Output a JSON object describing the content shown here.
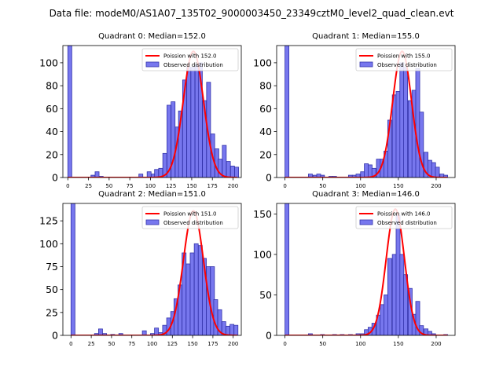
{
  "figure": {
    "suptitle": "Data file: modeM0/AS1A07_135T02_9000003450_23349cztM0_level2_quad_clean.evt"
  },
  "colors": {
    "bar_fill": "#7777ee",
    "bar_edge": "#3333aa",
    "curve": "#ff0000"
  },
  "chart_data": [
    {
      "type": "bar",
      "title": "Quadrant 0: Median=152.0",
      "legend": [
        "Poission with 152.0",
        "Observed distribution"
      ],
      "legend_position": "top-right",
      "xlim": [
        -6,
        210
      ],
      "ylim": [
        0,
        115
      ],
      "xticks": [
        0,
        25,
        50,
        75,
        100,
        125,
        150,
        175,
        200
      ],
      "yticks": [
        0,
        20,
        40,
        60,
        80,
        100
      ],
      "bin_width": 4.8,
      "bins": [
        [
          0,
          115
        ],
        [
          28,
          2
        ],
        [
          33,
          5
        ],
        [
          38,
          1
        ],
        [
          86,
          3
        ],
        [
          96,
          5
        ],
        [
          101,
          3
        ],
        [
          105,
          7
        ],
        [
          110,
          8
        ],
        [
          115,
          21
        ],
        [
          120,
          63
        ],
        [
          125,
          66
        ],
        [
          130,
          44
        ],
        [
          134,
          58
        ],
        [
          139,
          85
        ],
        [
          144,
          96
        ],
        [
          149,
          96
        ],
        [
          154,
          98
        ],
        [
          158,
          100
        ],
        [
          163,
          67
        ],
        [
          168,
          83
        ],
        [
          173,
          38
        ],
        [
          178,
          25
        ],
        [
          182,
          16
        ],
        [
          187,
          28
        ],
        [
          192,
          14
        ],
        [
          197,
          10
        ],
        [
          202,
          9
        ]
      ],
      "curve": {
        "mean": 152.0,
        "sigma": 12.3,
        "peak": 110,
        "x_start": 0,
        "x_end": 205
      }
    },
    {
      "type": "bar",
      "title": "Quadrant 1: Median=155.0",
      "legend": [
        "Poission with 155.0",
        "Observed distribution"
      ],
      "legend_position": "top-right",
      "xlim": [
        -11,
        225
      ],
      "ylim": [
        0,
        115
      ],
      "xticks": [
        0,
        50,
        100,
        150,
        200
      ],
      "yticks": [
        0,
        20,
        40,
        60,
        80,
        100
      ],
      "bin_width": 5.25,
      "bins": [
        [
          0,
          115
        ],
        [
          31,
          3
        ],
        [
          37,
          2
        ],
        [
          42,
          3
        ],
        [
          47,
          2
        ],
        [
          58,
          1
        ],
        [
          63,
          1
        ],
        [
          84,
          2
        ],
        [
          89,
          2
        ],
        [
          94,
          3
        ],
        [
          100,
          5
        ],
        [
          105,
          12
        ],
        [
          110,
          11
        ],
        [
          115,
          8
        ],
        [
          121,
          16
        ],
        [
          126,
          16
        ],
        [
          131,
          23
        ],
        [
          136,
          50
        ],
        [
          142,
          72
        ],
        [
          147,
          75
        ],
        [
          152,
          100
        ],
        [
          157,
          96
        ],
        [
          163,
          67
        ],
        [
          168,
          76
        ],
        [
          173,
          95
        ],
        [
          178,
          57
        ],
        [
          184,
          22
        ],
        [
          189,
          15
        ],
        [
          194,
          13
        ],
        [
          199,
          9
        ],
        [
          205,
          3
        ],
        [
          210,
          2
        ]
      ],
      "curve": {
        "mean": 155.0,
        "sigma": 12.45,
        "peak": 110,
        "x_start": 0,
        "x_end": 215
      }
    },
    {
      "type": "bar",
      "title": "Quadrant 2: Median=151.0",
      "legend": [
        "Poission with 151.0",
        "Observed distribution"
      ],
      "legend_position": "top-right",
      "xlim": [
        -10,
        210
      ],
      "ylim": [
        0,
        144
      ],
      "xticks": [
        0,
        25,
        50,
        75,
        100,
        125,
        150,
        175,
        200
      ],
      "yticks": [
        0,
        25,
        50,
        75,
        100,
        125
      ],
      "bin_width": 4.9,
      "bins": [
        [
          0,
          144
        ],
        [
          29,
          2
        ],
        [
          34,
          7
        ],
        [
          39,
          2
        ],
        [
          49,
          1
        ],
        [
          59,
          2
        ],
        [
          88,
          5
        ],
        [
          98,
          2
        ],
        [
          103,
          8
        ],
        [
          108,
          3
        ],
        [
          113,
          11
        ],
        [
          118,
          19
        ],
        [
          123,
          26
        ],
        [
          127,
          40
        ],
        [
          132,
          55
        ],
        [
          137,
          90
        ],
        [
          142,
          78
        ],
        [
          147,
          90
        ],
        [
          152,
          100
        ],
        [
          157,
          98
        ],
        [
          162,
          84
        ],
        [
          167,
          75
        ],
        [
          172,
          75
        ],
        [
          176,
          39
        ],
        [
          181,
          28
        ],
        [
          186,
          15
        ],
        [
          191,
          10
        ],
        [
          196,
          12
        ],
        [
          201,
          11
        ]
      ],
      "curve": {
        "mean": 151.0,
        "sigma": 12.3,
        "peak": 136,
        "x_start": 0,
        "x_end": 205
      }
    },
    {
      "type": "bar",
      "title": "Quadrant 3: Median=146.0",
      "legend": [
        "Poission with 146.0",
        "Observed distribution"
      ],
      "legend_position": "top-right",
      "xlim": [
        -11,
        225
      ],
      "ylim": [
        0,
        163
      ],
      "xticks": [
        0,
        50,
        100,
        150,
        200
      ],
      "yticks": [
        0,
        50,
        100,
        150
      ],
      "bin_width": 5.25,
      "bins": [
        [
          0,
          163
        ],
        [
          31,
          2
        ],
        [
          47,
          1
        ],
        [
          63,
          1
        ],
        [
          73,
          1
        ],
        [
          84,
          1
        ],
        [
          94,
          2
        ],
        [
          100,
          2
        ],
        [
          105,
          7
        ],
        [
          110,
          10
        ],
        [
          115,
          15
        ],
        [
          121,
          25
        ],
        [
          126,
          38
        ],
        [
          131,
          50
        ],
        [
          136,
          95
        ],
        [
          142,
          100
        ],
        [
          147,
          148
        ],
        [
          152,
          100
        ],
        [
          157,
          75
        ],
        [
          163,
          58
        ],
        [
          168,
          26
        ],
        [
          173,
          42
        ],
        [
          178,
          12
        ],
        [
          184,
          8
        ],
        [
          189,
          5
        ],
        [
          194,
          2
        ],
        [
          210,
          1
        ]
      ],
      "curve": {
        "mean": 146.0,
        "sigma": 12.1,
        "peak": 156,
        "x_start": 0,
        "x_end": 215
      }
    }
  ]
}
